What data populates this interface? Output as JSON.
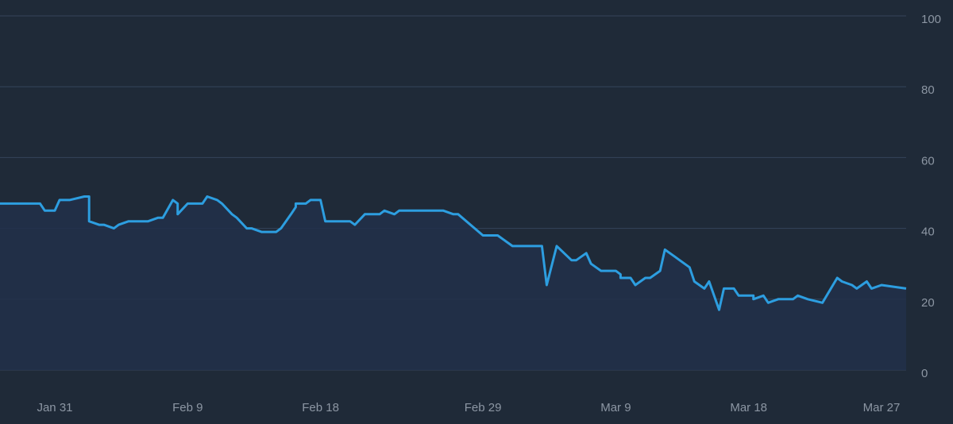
{
  "chart_data": {
    "type": "line",
    "title": "",
    "xlabel": "",
    "ylabel": "",
    "ylim": [
      0,
      100
    ],
    "yticks": [
      0,
      20,
      40,
      60,
      80,
      100
    ],
    "xticks": [
      "Jan 31",
      "Feb 9",
      "Feb 18",
      "Feb 29",
      "Mar 9",
      "Mar 18",
      "Mar 27"
    ],
    "grid": true,
    "legend": "none",
    "colors": {
      "background": "#1f2a38",
      "grid": "#34445a",
      "line": "#2d9ee0",
      "fill": "#22304a",
      "tick_text": "#8c96a3"
    },
    "series": [
      {
        "x": [
          "Jan 29",
          "Jan 30",
          "Jan 30",
          "Jan 31",
          "Jan 31",
          "Feb 1",
          "Feb 2",
          "Feb 2",
          "Feb 2",
          "Feb 3",
          "Feb 3",
          "Feb 4",
          "Feb 4",
          "Feb 5",
          "Feb 6",
          "Feb 6",
          "Feb 7",
          "Feb 7",
          "Feb 8",
          "Feb 8",
          "Feb 8",
          "Feb 9",
          "Feb 9",
          "Feb 10",
          "Feb 10",
          "Feb 11",
          "Feb 11",
          "Feb 12",
          "Feb 12",
          "Feb 13",
          "Feb 13",
          "Feb 14",
          "Feb 15",
          "Feb 15",
          "Feb 16",
          "Feb 16",
          "Feb 16",
          "Feb 17",
          "Feb 17",
          "Feb 18",
          "Feb 18",
          "Feb 19",
          "Feb 20",
          "Feb 20",
          "Feb 21",
          "Feb 22",
          "Feb 22",
          "Feb 23",
          "Feb 23",
          "Feb 23",
          "Feb 24",
          "Feb 26",
          "Feb 26",
          "Feb 27",
          "Feb 27",
          "Feb 29",
          "Mar 1",
          "Mar 2",
          "Mar 3",
          "Mar 4",
          "Mar 4",
          "Mar 5",
          "Mar 6",
          "Mar 6",
          "Mar 7",
          "Mar 7",
          "Mar 8",
          "Mar 9",
          "Mar 9",
          "Mar 9",
          "Mar 10",
          "Mar 10",
          "Mar 11",
          "Mar 11",
          "Mar 12",
          "Mar 12",
          "Mar 13",
          "Mar 13",
          "Mar 14",
          "Mar 14",
          "Mar 15",
          "Mar 15",
          "Mar 16",
          "Mar 16",
          "Mar 17",
          "Mar 17",
          "Mar 18",
          "Mar 18",
          "Mar 18",
          "Mar 19",
          "Mar 19",
          "Mar 20",
          "Mar 21",
          "Mar 21",
          "Mar 22",
          "Mar 23",
          "Mar 24",
          "Mar 24",
          "Mar 25",
          "Mar 25",
          "Mar 26",
          "Mar 26",
          "Mar 27",
          "Mar 27"
        ],
        "values": [
          47,
          47,
          45,
          45,
          48,
          48,
          49,
          49,
          42,
          41,
          41,
          40,
          41,
          42,
          42,
          42,
          43,
          43,
          48,
          47,
          44,
          47,
          47,
          47,
          49,
          48,
          47,
          44,
          43,
          40,
          40,
          39,
          39,
          40,
          44,
          46,
          47,
          47,
          48,
          48,
          42,
          42,
          42,
          41,
          44,
          44,
          45,
          44,
          45,
          45,
          45,
          45,
          45,
          44,
          44,
          38,
          38,
          35,
          35,
          35,
          24,
          35,
          31,
          31,
          33,
          30,
          28,
          28,
          27,
          26,
          26,
          24,
          26,
          26,
          28,
          34,
          32,
          31,
          29,
          25,
          23,
          25,
          17,
          23,
          23,
          21,
          21,
          21,
          20,
          21,
          19,
          20,
          20,
          21,
          20,
          19,
          26,
          25,
          24,
          23,
          25,
          23,
          24,
          23
        ]
      }
    ]
  }
}
